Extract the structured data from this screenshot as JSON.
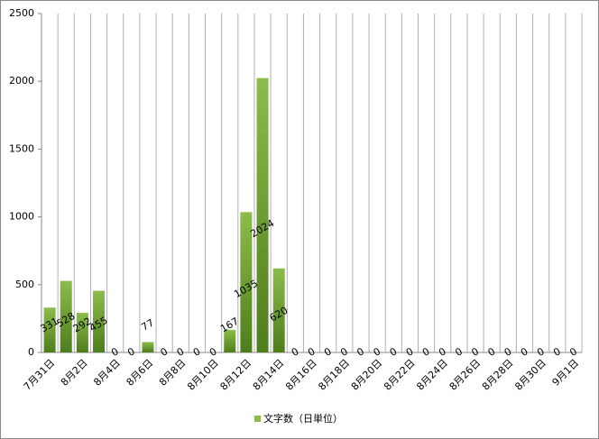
{
  "chart_data": {
    "type": "bar",
    "categories": [
      "7月31日",
      null,
      "8月2日",
      null,
      "8月4日",
      null,
      "8月6日",
      null,
      "8月8日",
      null,
      "8月10日",
      null,
      "8月12日",
      null,
      "8月14日",
      null,
      "8月16日",
      null,
      "8月18日",
      null,
      "8月20日",
      null,
      "8月22日",
      null,
      "8月24日",
      null,
      "8月26日",
      null,
      "8月28日",
      null,
      "8月30日",
      null,
      "9月1日"
    ],
    "series": [
      {
        "name": "文字数（日単位）",
        "color": "#8cbc4a",
        "values": [
          331,
          528,
          292,
          455,
          0,
          0,
          77,
          0,
          0,
          0,
          0,
          167,
          1035,
          2024,
          620,
          0,
          0,
          0,
          0,
          0,
          0,
          0,
          0,
          0,
          0,
          0,
          0,
          0,
          0,
          0,
          0,
          0,
          0
        ]
      }
    ],
    "ylim": [
      0,
      2500
    ],
    "yticks": [
      0,
      500,
      1000,
      1500,
      2000,
      2500
    ],
    "grid": true,
    "legend": "bottom"
  }
}
